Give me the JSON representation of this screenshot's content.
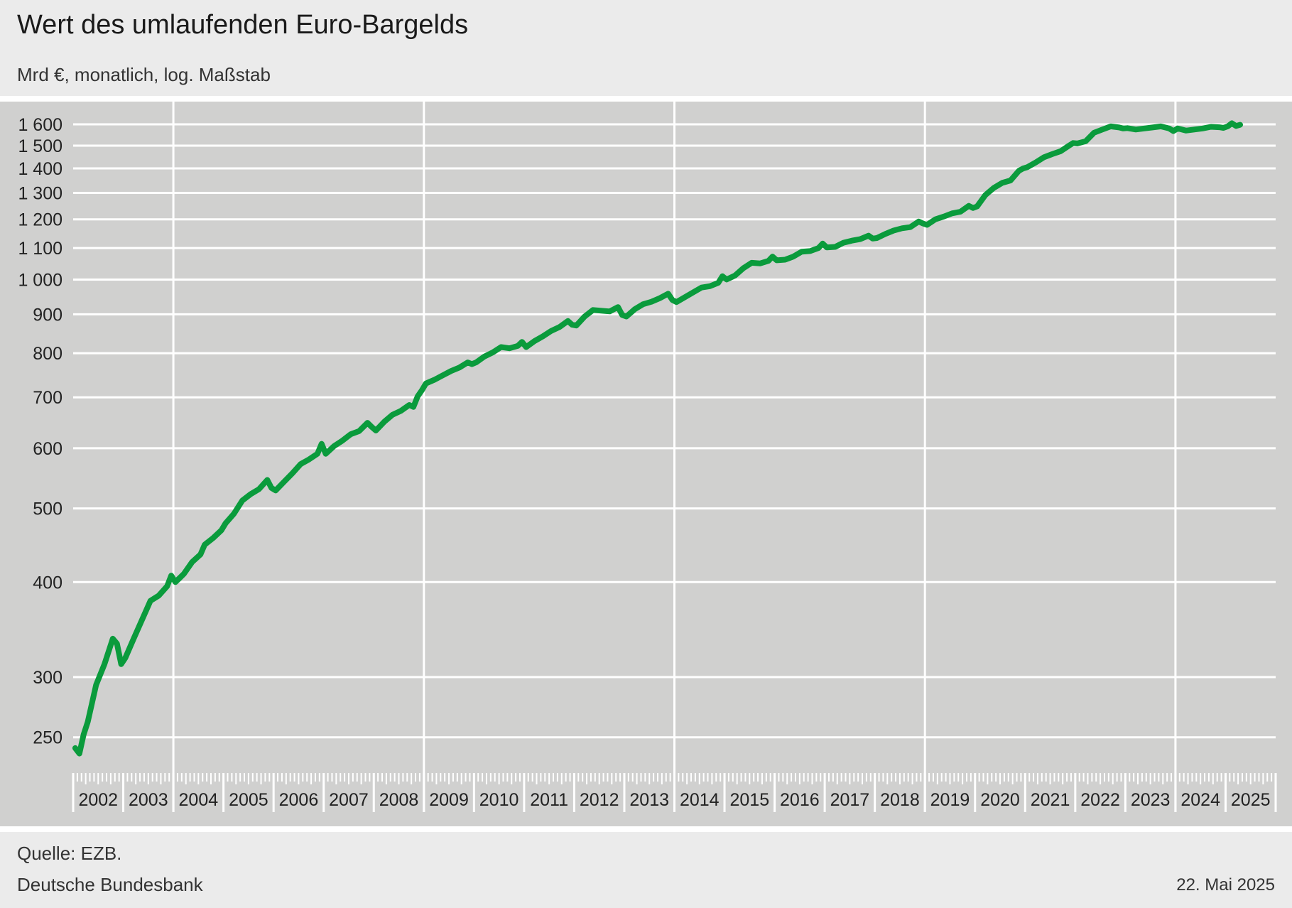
{
  "header": {
    "title": "Wert des umlaufenden Euro-Bargelds",
    "subtitle": "Mrd €, monatlich, log. Maßstab"
  },
  "footer": {
    "source": "Quelle: EZB.",
    "organization": "Deutsche Bundesbank",
    "date": "22. Mai 2025"
  },
  "colors": {
    "line": "#0a9b3c",
    "plot_background": "#d0d0cf",
    "grid": "#ffffff",
    "page_background": "#ebebeb"
  },
  "chart_data": {
    "type": "line",
    "title": "Wert des umlaufenden Euro-Bargelds",
    "subtitle": "Mrd €, monatlich, log. Maßstab",
    "y_scale": "log",
    "ylim": [
      230,
      1650
    ],
    "y_ticks": [
      250,
      300,
      400,
      500,
      600,
      700,
      800,
      900,
      1000,
      1100,
      1200,
      1300,
      1400,
      1500,
      1600
    ],
    "y_tick_labels": [
      "250",
      "300",
      "400",
      "500",
      "600",
      "700",
      "800",
      "900",
      "1 000",
      "1 100",
      "1 200",
      "1 300",
      "1 400",
      "1 500",
      "1 600"
    ],
    "x_range": [
      "2002-01",
      "2025-12"
    ],
    "x_tick_labels": [
      "2002",
      "2003",
      "2004",
      "2005",
      "2006",
      "2007",
      "2008",
      "2009",
      "2010",
      "2011",
      "2012",
      "2013",
      "2014",
      "2015",
      "2016",
      "2017",
      "2018",
      "2019",
      "2020",
      "2021",
      "2022",
      "2023",
      "2024",
      "2025"
    ],
    "vertical_gridlines_at": [
      "2004-01",
      "2009-01",
      "2014-01",
      "2019-01",
      "2024-01"
    ],
    "grid": true,
    "legend": "none",
    "series": [
      {
        "x": [
          "2002-01",
          "2002-02",
          "2002-03",
          "2002-04",
          "2002-06",
          "2002-08",
          "2002-10",
          "2002-11",
          "2002-12",
          "2003-01",
          "2003-03",
          "2003-05",
          "2003-07",
          "2003-09",
          "2003-11",
          "2003-12",
          "2004-01",
          "2004-03",
          "2004-05",
          "2004-07",
          "2004-08",
          "2004-10",
          "2004-12",
          "2005-01",
          "2005-03",
          "2005-05",
          "2005-07",
          "2005-09",
          "2005-11",
          "2005-12",
          "2006-01",
          "2006-03",
          "2006-05",
          "2006-07",
          "2006-09",
          "2006-11",
          "2006-12",
          "2007-01",
          "2007-03",
          "2007-05",
          "2007-07",
          "2007-09",
          "2007-11",
          "2007-12",
          "2008-01",
          "2008-03",
          "2008-05",
          "2008-07",
          "2008-09",
          "2008-10",
          "2008-11",
          "2008-12",
          "2009-01",
          "2009-03",
          "2009-05",
          "2009-07",
          "2009-09",
          "2009-11",
          "2009-12",
          "2010-01",
          "2010-03",
          "2010-05",
          "2010-07",
          "2010-09",
          "2010-11",
          "2010-12",
          "2011-01",
          "2011-03",
          "2011-05",
          "2011-07",
          "2011-09",
          "2011-11",
          "2011-12",
          "2012-01",
          "2012-03",
          "2012-05",
          "2012-07",
          "2012-09",
          "2012-11",
          "2012-12",
          "2013-01",
          "2013-03",
          "2013-05",
          "2013-07",
          "2013-09",
          "2013-11",
          "2013-12",
          "2014-01",
          "2014-03",
          "2014-05",
          "2014-07",
          "2014-09",
          "2014-11",
          "2014-12",
          "2015-01",
          "2015-03",
          "2015-05",
          "2015-07",
          "2015-09",
          "2015-11",
          "2015-12",
          "2016-01",
          "2016-03",
          "2016-05",
          "2016-07",
          "2016-09",
          "2016-11",
          "2016-12",
          "2017-01",
          "2017-03",
          "2017-05",
          "2017-07",
          "2017-09",
          "2017-11",
          "2017-12",
          "2018-01",
          "2018-03",
          "2018-05",
          "2018-07",
          "2018-09",
          "2018-11",
          "2018-12",
          "2019-01",
          "2019-03",
          "2019-05",
          "2019-07",
          "2019-09",
          "2019-11",
          "2019-12",
          "2020-01",
          "2020-03",
          "2020-05",
          "2020-07",
          "2020-09",
          "2020-11",
          "2020-12",
          "2021-01",
          "2021-03",
          "2021-05",
          "2021-07",
          "2021-09",
          "2021-11",
          "2021-12",
          "2022-01",
          "2022-03",
          "2022-05",
          "2022-07",
          "2022-09",
          "2022-11",
          "2022-12",
          "2023-01",
          "2023-03",
          "2023-05",
          "2023-07",
          "2023-09",
          "2023-11",
          "2023-12",
          "2024-01",
          "2024-03",
          "2024-05",
          "2024-07",
          "2024-09",
          "2024-11",
          "2024-12",
          "2025-01",
          "2025-02",
          "2025-03",
          "2025-04"
        ],
        "values": [
          242,
          238,
          252,
          262,
          293,
          312,
          337,
          332,
          312,
          318,
          337,
          357,
          378,
          384,
          395,
          408,
          400,
          410,
          425,
          435,
          448,
          457,
          468,
          478,
          492,
          512,
          522,
          530,
          545,
          532,
          528,
          542,
          556,
          572,
          580,
          590,
          608,
          590,
          604,
          614,
          626,
          632,
          648,
          640,
          633,
          650,
          664,
          672,
          684,
          680,
          702,
          715,
          730,
          738,
          748,
          758,
          766,
          778,
          774,
          778,
          792,
          802,
          815,
          812,
          818,
          828,
          815,
          830,
          842,
          856,
          866,
          882,
          872,
          870,
          894,
          912,
          910,
          908,
          920,
          898,
          894,
          914,
          928,
          935,
          945,
          958,
          940,
          934,
          948,
          962,
          976,
          980,
          990,
          1010,
          1000,
          1012,
          1035,
          1052,
          1050,
          1058,
          1072,
          1060,
          1062,
          1072,
          1088,
          1090,
          1100,
          1115,
          1102,
          1104,
          1118,
          1125,
          1130,
          1142,
          1132,
          1134,
          1148,
          1160,
          1168,
          1172,
          1192,
          1185,
          1180,
          1200,
          1210,
          1222,
          1228,
          1250,
          1242,
          1248,
          1292,
          1320,
          1340,
          1350,
          1390,
          1400,
          1405,
          1425,
          1448,
          1462,
          1475,
          1500,
          1512,
          1510,
          1520,
          1560,
          1575,
          1590,
          1585,
          1580,
          1582,
          1575,
          1580,
          1585,
          1590,
          1580,
          1568,
          1580,
          1570,
          1575,
          1580,
          1588,
          1586,
          1583,
          1590,
          1605,
          1592,
          1598
        ]
      }
    ]
  }
}
